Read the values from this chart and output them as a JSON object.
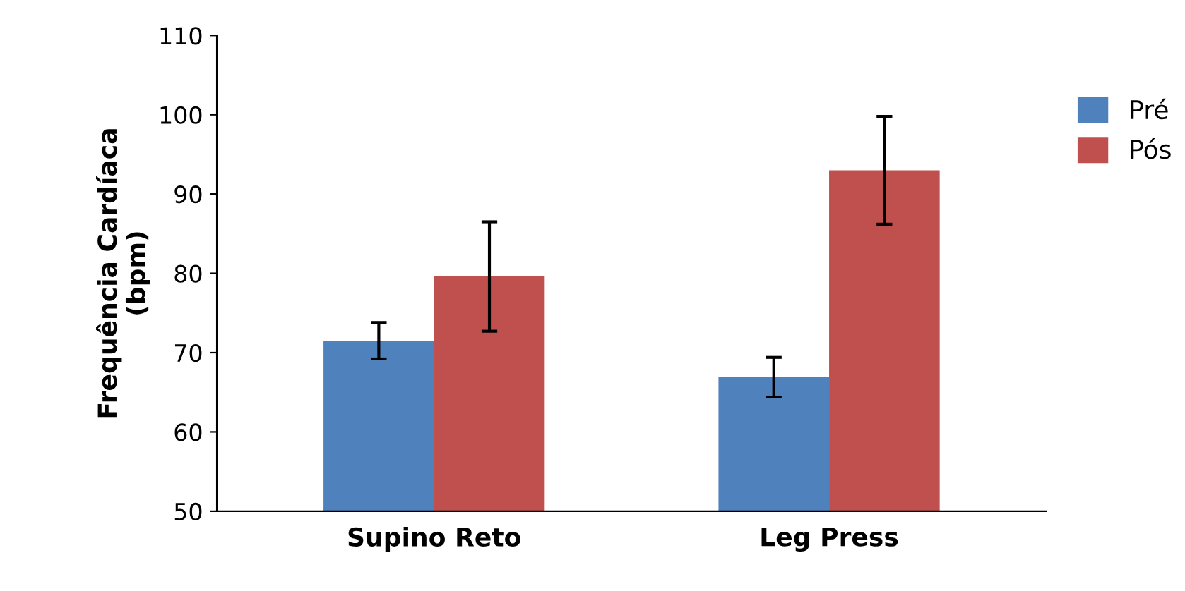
{
  "chart_data": {
    "type": "bar",
    "ylabel": "Frequência Cardíaca\n(bpm)",
    "categories": [
      "Supino Reto",
      "Leg Press"
    ],
    "series": [
      {
        "name": "Pré",
        "color": "#4f81bd",
        "values": [
          71.5,
          66.9
        ],
        "errors": [
          2.3,
          2.5
        ]
      },
      {
        "name": "Pós",
        "color": "#c0504d",
        "values": [
          79.6,
          93.0
        ],
        "errors": [
          6.9,
          6.8
        ]
      }
    ],
    "ylim": [
      50,
      110
    ],
    "yticks": [
      50,
      60,
      70,
      80,
      90,
      100,
      110
    ],
    "grid": false,
    "legend": "right"
  }
}
